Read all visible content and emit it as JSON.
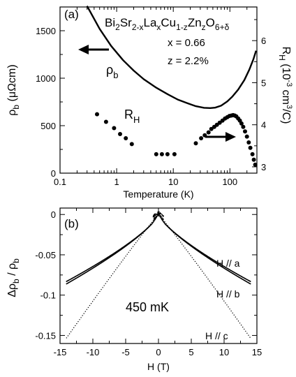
{
  "chart_data": [
    {
      "type": "line",
      "panel_label": "(a)",
      "xlabel": "Temperature (K)",
      "ylabel_left": {
        "main": "ρ",
        "sub": "b",
        "unit": " (μΩcm)"
      },
      "ylabel_right": {
        "main": "R",
        "sub": "H",
        "unit_pre": " (10",
        "unit_sup1": "-3",
        "unit_mid": " cm",
        "unit_sup2": "3",
        "unit_post": "/C)"
      },
      "x_scale": "log",
      "xlim": [
        0.1,
        300
      ],
      "ylim_left": [
        0,
        1750
      ],
      "ylim_right": [
        2.85,
        6.8
      ],
      "x_ticks": [
        "0.1",
        "1",
        "10",
        "100"
      ],
      "x_tick_values": [
        0.1,
        1,
        10,
        100
      ],
      "y_left_ticks": [
        "0",
        "500",
        "1000",
        "1500"
      ],
      "y_left_tick_values": [
        0,
        500,
        1000,
        1500
      ],
      "y_right_ticks": [
        "3",
        "4",
        "5",
        "6"
      ],
      "y_right_tick_values": [
        3,
        4,
        5,
        6
      ],
      "formula": {
        "parts": [
          [
            "Bi",
            ""
          ],
          [
            "2",
            "sub"
          ],
          [
            "Sr",
            ""
          ],
          [
            "2-x",
            "sub"
          ],
          [
            "La",
            ""
          ],
          [
            "x",
            "sub"
          ],
          [
            "Cu",
            ""
          ],
          [
            "1-z",
            "sub"
          ],
          [
            "Zn",
            ""
          ],
          [
            "z",
            "sub"
          ],
          [
            "O",
            ""
          ],
          [
            "6+δ",
            "sub"
          ]
        ]
      },
      "param_x": "x = 0.66",
      "param_z": "z = 2.2%",
      "rho_label": {
        "main": "ρ",
        "sub": "b"
      },
      "rh_label": {
        "main": "R",
        "sub": "H"
      },
      "series": [
        {
          "name": "ρb",
          "axis": "left",
          "style": "line",
          "x": [
            0.3,
            0.5,
            0.8,
            1.3,
            2,
            3,
            5,
            8,
            12,
            18,
            25,
            35,
            45,
            55,
            70,
            90,
            110,
            140,
            180,
            220,
            260,
            290
          ],
          "y": [
            1760,
            1520,
            1340,
            1190,
            1080,
            990,
            900,
            830,
            775,
            735,
            705,
            688,
            685,
            690,
            710,
            755,
            805,
            880,
            980,
            1090,
            1200,
            1290
          ]
        },
        {
          "name": "RH",
          "axis": "right",
          "style": "points",
          "x": [
            0.45,
            0.65,
            0.9,
            1.15,
            1.45,
            1.85,
            5,
            6.3,
            7.9,
            10.5,
            25,
            31,
            36,
            42,
            47,
            53,
            59,
            66,
            74,
            82,
            90,
            98,
            106,
            114,
            122,
            130,
            140,
            150,
            160,
            172,
            185,
            200,
            215,
            230,
            250,
            265,
            280
          ],
          "y": [
            4.25,
            4.07,
            3.92,
            3.78,
            3.68,
            3.54,
            3.3,
            3.3,
            3.3,
            3.3,
            3.56,
            3.68,
            3.75,
            3.82,
            3.9,
            3.95,
            4.0,
            4.05,
            4.1,
            4.15,
            4.18,
            4.21,
            4.22,
            4.23,
            4.22,
            4.2,
            4.15,
            4.1,
            4.03,
            3.95,
            3.84,
            3.72,
            3.58,
            3.45,
            3.3,
            3.17,
            3.05
          ]
        }
      ]
    },
    {
      "type": "scatter",
      "panel_label": "(b)",
      "xlabel": "H (T)",
      "ylabel": {
        "delta": "Δρ",
        "sub1": "b",
        "div": " / ρ",
        "sub2": "b"
      },
      "xlim": [
        -15,
        15
      ],
      "ylim": [
        -0.16,
        0.008
      ],
      "x_ticks": [
        "-15",
        "-10",
        "-5",
        "0",
        "5",
        "10",
        "15"
      ],
      "x_tick_values": [
        -15,
        -10,
        -5,
        0,
        5,
        10,
        15
      ],
      "y_ticks": [
        "0",
        "-0.05",
        "-0.1",
        "-0.15"
      ],
      "y_tick_values": [
        0,
        -0.05,
        -0.1,
        -0.15
      ],
      "annotation": "450 mK",
      "series": [
        {
          "name": "H // a",
          "h_max": 14,
          "y_at_14": -0.083,
          "exponent": 0.75
        },
        {
          "name": "H // b",
          "h_max": 14,
          "y_at_14": -0.086,
          "exponent": 0.76
        },
        {
          "name": "H // c",
          "h_max": 14,
          "y_at_14": -0.153,
          "exponent": 1.05
        }
      ]
    }
  ]
}
